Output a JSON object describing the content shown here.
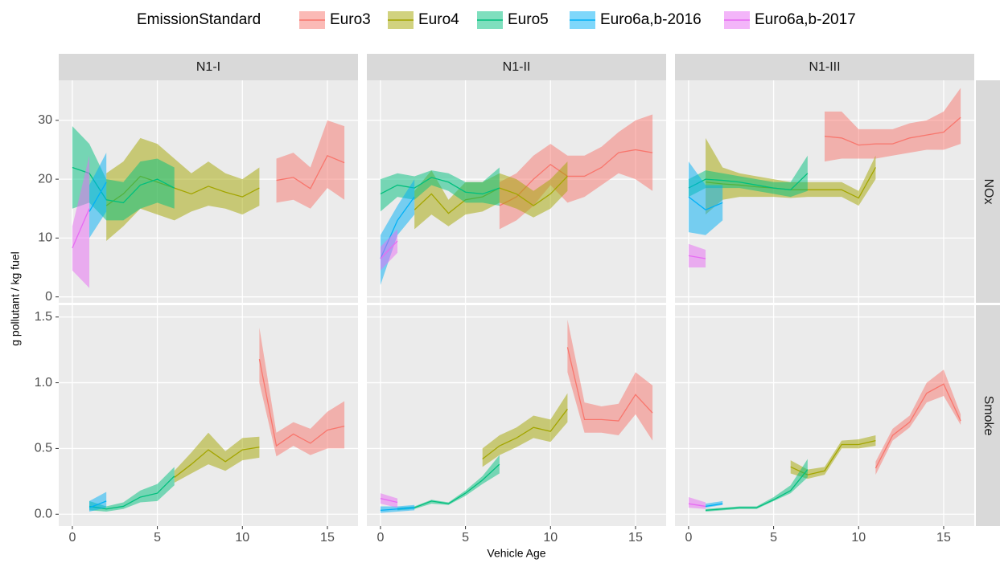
{
  "chart_data": {
    "type": "line",
    "legend_title": "EmissionStandard",
    "legend_position": "top",
    "x_label": "Vehicle Age",
    "y_label": "g pollutant / kg fuel",
    "series": [
      {
        "name": "Euro3",
        "color": "#F8766D"
      },
      {
        "name": "Euro4",
        "color": "#A3A500"
      },
      {
        "name": "Euro5",
        "color": "#00BF7D"
      },
      {
        "name": "Euro6a,b-2016",
        "color": "#00B0F6"
      },
      {
        "name": "Euro6a,b-2017",
        "color": "#E76BF3"
      }
    ],
    "cols": [
      "N1-I",
      "N1-II",
      "N1-III"
    ],
    "xlim": [
      -0.8,
      16.8
    ],
    "xticks": [
      0,
      5,
      10,
      15
    ],
    "rows": [
      {
        "label": "NOx",
        "ylim": [
          -1,
          36.8
        ],
        "yticks": [
          0,
          10,
          20,
          30
        ]
      },
      {
        "label": "Smoke",
        "ylim": [
          -0.09,
          1.59
        ],
        "yticks": [
          {
            "value": 0,
            "label": "0.0"
          },
          0.5,
          {
            "value": 1,
            "label": "1.0"
          },
          1.5
        ]
      }
    ],
    "grid": true,
    "panels": [
      {
        "series": [
          {
            "x": [
              12,
              13,
              14,
              15,
              16
            ],
            "values": [
              19.8,
              20.3,
              18.4,
              24,
              22.8
            ],
            "lower": [
              16,
              16.5,
              15,
              18.5,
              16.5
            ],
            "upper": [
              23.5,
              24.5,
              22,
              30,
              29
            ]
          },
          {
            "x": [
              2,
              3,
              4,
              5,
              6,
              7,
              8,
              9,
              10,
              11
            ],
            "values": [
              15.5,
              17.5,
              20.5,
              19.5,
              18.5,
              17.5,
              18.8,
              17.8,
              17,
              18.5
            ],
            "lower": [
              9.5,
              12,
              15,
              14,
              13,
              14.5,
              15.5,
              15,
              14,
              15.5
            ],
            "upper": [
              21,
              23,
              27,
              26,
              23.5,
              21,
              23,
              21,
              20,
              22
            ]
          },
          {
            "x": [
              0,
              1,
              2,
              3,
              4,
              5,
              6
            ],
            "values": [
              22,
              21,
              16.5,
              16,
              19,
              20,
              18.5
            ],
            "lower": [
              15,
              16,
              13,
              13,
              15,
              16,
              15
            ],
            "upper": [
              29,
              26,
              20,
              19.5,
              23,
              23.5,
              22
            ]
          },
          {
            "x": [
              1,
              2
            ],
            "values": [
              14.5,
              19.5
            ],
            "lower": [
              10,
              14.5
            ],
            "upper": [
              19,
              24.5
            ]
          },
          {
            "x": [
              0,
              1
            ],
            "values": [
              8.3,
              15
            ],
            "lower": [
              4.5,
              1.5
            ],
            "upper": [
              12,
              24
            ]
          }
        ]
      },
      {
        "series": [
          {
            "x": [
              7,
              8,
              9,
              10,
              11,
              12,
              13,
              14,
              15,
              16
            ],
            "values": [
              15.5,
              17,
              20,
              22.5,
              20.5,
              20.5,
              22,
              24.5,
              25,
              24.5
            ],
            "lower": [
              11.5,
              13,
              15.5,
              19,
              16,
              17,
              19,
              21,
              20,
              18
            ],
            "upper": [
              19.5,
              21,
              24,
              26,
              24,
              24,
              25.5,
              28,
              30,
              31
            ]
          },
          {
            "x": [
              2,
              3,
              4,
              5,
              6,
              7,
              8,
              9,
              10,
              11
            ],
            "values": [
              14.8,
              17.5,
              14.2,
              16.5,
              17,
              18.5,
              17.5,
              15.5,
              17.5,
              20.5
            ],
            "lower": [
              11.5,
              14,
              12,
              14,
              14.5,
              16,
              15,
              13.5,
              15,
              18
            ],
            "upper": [
              18,
              21.5,
              16.5,
              19.5,
              19.5,
              21,
              20,
              18,
              20,
              23
            ]
          },
          {
            "x": [
              0,
              1,
              2,
              3,
              4,
              5,
              6,
              7
            ],
            "values": [
              17.5,
              19,
              18.5,
              20.3,
              19.5,
              17.8,
              17.5,
              18.5
            ],
            "lower": [
              14.5,
              17,
              16.5,
              19,
              18,
              16,
              16,
              15.5
            ],
            "upper": [
              20,
              21,
              20.5,
              21.5,
              21,
              19.5,
              19.5,
              22
            ]
          },
          {
            "x": [
              0,
              1,
              2
            ],
            "values": [
              6.5,
              13,
              17
            ],
            "lower": [
              2,
              10.5,
              14
            ],
            "upper": [
              10.5,
              15.5,
              20
            ]
          },
          {
            "x": [
              0,
              1
            ],
            "values": [
              6.5,
              9.5
            ],
            "lower": [
              4.5,
              7.5
            ],
            "upper": [
              8.5,
              11.5
            ]
          }
        ]
      },
      {
        "series": [
          {
            "x": [
              8,
              9,
              10,
              11,
              12,
              13,
              14,
              15,
              16
            ],
            "values": [
              27.3,
              27,
              25.8,
              26,
              26,
              27,
              27.5,
              28,
              30.5
            ],
            "lower": [
              23,
              23.5,
              23.5,
              23.5,
              24,
              24.5,
              25,
              25,
              26
            ],
            "upper": [
              31.5,
              31.5,
              28.5,
              28.5,
              28.5,
              29.5,
              30,
              31.5,
              35.5
            ]
          },
          {
            "x": [
              1,
              2,
              3,
              4,
              5,
              6,
              7,
              8,
              9,
              10,
              11
            ],
            "values": [
              19.5,
              19.2,
              19,
              18.7,
              18.5,
              18.2,
              18.2,
              18.2,
              18.2,
              16.8,
              22
            ],
            "lower": [
              14,
              16.5,
              17,
              17,
              17,
              16.8,
              17,
              17,
              17,
              15.5,
              20
            ],
            "upper": [
              27,
              22,
              21,
              20.5,
              20,
              19.5,
              19.5,
              19.5,
              19.5,
              18,
              24
            ]
          },
          {
            "x": [
              0,
              1,
              2,
              3,
              4,
              5,
              6,
              7
            ],
            "values": [
              18.5,
              20,
              19.8,
              19.5,
              19,
              18.5,
              18.2,
              21
            ],
            "lower": [
              17,
              18.5,
              18.5,
              18.5,
              18,
              17.5,
              17,
              18
            ],
            "upper": [
              20,
              21.5,
              21,
              20.5,
              20,
              19.5,
              19.5,
              24
            ]
          },
          {
            "x": [
              0,
              1,
              2
            ],
            "values": [
              17,
              14.8,
              16
            ],
            "lower": [
              11,
              10.5,
              13
            ],
            "upper": [
              23,
              19,
              19
            ]
          },
          {
            "x": [
              0,
              1
            ],
            "values": [
              7,
              6.5
            ],
            "lower": [
              5,
              5
            ],
            "upper": [
              9,
              8
            ]
          }
        ]
      },
      {
        "series": [
          {
            "x": [
              11,
              12,
              13,
              14,
              15,
              16
            ],
            "values": [
              1.18,
              0.52,
              0.61,
              0.54,
              0.64,
              0.67
            ],
            "lower": [
              1.0,
              0.44,
              0.52,
              0.45,
              0.5,
              0.5
            ],
            "upper": [
              1.42,
              0.62,
              0.7,
              0.65,
              0.78,
              0.86
            ]
          },
          {
            "x": [
              6,
              7,
              8,
              9,
              10,
              11
            ],
            "values": [
              0.28,
              0.38,
              0.49,
              0.4,
              0.49,
              0.51
            ],
            "lower": [
              0.24,
              0.31,
              0.38,
              0.33,
              0.41,
              0.43
            ],
            "upper": [
              0.33,
              0.47,
              0.62,
              0.48,
              0.58,
              0.59
            ]
          },
          {
            "x": [
              1,
              2,
              3,
              4,
              5,
              6
            ],
            "values": [
              0.06,
              0.04,
              0.06,
              0.13,
              0.16,
              0.29
            ],
            "lower": [
              0.03,
              0.02,
              0.04,
              0.09,
              0.1,
              0.22
            ],
            "upper": [
              0.1,
              0.06,
              0.09,
              0.18,
              0.23,
              0.36
            ]
          },
          {
            "x": [
              1,
              2
            ],
            "values": [
              0.05,
              0.1
            ],
            "lower": [
              0.02,
              0.05
            ],
            "upper": [
              0.1,
              0.17
            ]
          },
          {
            "x": [],
            "values": [],
            "lower": [],
            "upper": []
          }
        ]
      },
      {
        "series": [
          {
            "x": [
              11,
              12,
              13,
              14,
              15,
              16
            ],
            "values": [
              1.27,
              0.72,
              0.72,
              0.71,
              0.91,
              0.77
            ],
            "lower": [
              1.08,
              0.62,
              0.62,
              0.6,
              0.76,
              0.56
            ],
            "upper": [
              1.48,
              0.85,
              0.82,
              0.84,
              1.08,
              0.98
            ]
          },
          {
            "x": [
              6,
              7,
              8,
              9,
              10,
              11
            ],
            "values": [
              0.42,
              0.52,
              0.58,
              0.66,
              0.63,
              0.8
            ],
            "lower": [
              0.36,
              0.45,
              0.51,
              0.58,
              0.55,
              0.7
            ],
            "upper": [
              0.5,
              0.6,
              0.66,
              0.75,
              0.72,
              0.92
            ]
          },
          {
            "x": [
              1,
              2,
              3,
              4,
              5,
              6,
              7
            ],
            "values": [
              0.04,
              0.05,
              0.1,
              0.08,
              0.16,
              0.26,
              0.38
            ],
            "lower": [
              0.03,
              0.04,
              0.08,
              0.07,
              0.14,
              0.23,
              0.31
            ],
            "upper": [
              0.05,
              0.06,
              0.11,
              0.09,
              0.18,
              0.29,
              0.45
            ]
          },
          {
            "x": [
              0,
              1,
              2
            ],
            "values": [
              0.03,
              0.04,
              0.05
            ],
            "lower": [
              0.01,
              0.02,
              0.03
            ],
            "upper": [
              0.06,
              0.06,
              0.07
            ]
          },
          {
            "x": [
              0,
              1
            ],
            "values": [
              0.12,
              0.09
            ],
            "lower": [
              0.08,
              0.05
            ],
            "upper": [
              0.16,
              0.12
            ]
          }
        ]
      },
      {
        "series": [
          {
            "x": [
              11,
              12,
              13,
              14,
              15,
              16
            ],
            "values": [
              0.35,
              0.6,
              0.7,
              0.92,
              0.99,
              0.71
            ],
            "lower": [
              0.3,
              0.56,
              0.66,
              0.85,
              0.9,
              0.68
            ],
            "upper": [
              0.4,
              0.65,
              0.75,
              1.0,
              1.1,
              0.76
            ]
          },
          {
            "x": [
              6,
              7,
              8,
              9,
              10,
              11
            ],
            "values": [
              0.36,
              0.3,
              0.33,
              0.53,
              0.53,
              0.56
            ],
            "lower": [
              0.31,
              0.27,
              0.3,
              0.5,
              0.5,
              0.52
            ],
            "upper": [
              0.41,
              0.34,
              0.36,
              0.56,
              0.57,
              0.6
            ]
          },
          {
            "x": [
              1,
              2,
              3,
              4,
              5,
              6,
              7
            ],
            "values": [
              0.03,
              0.04,
              0.05,
              0.05,
              0.11,
              0.18,
              0.34
            ],
            "lower": [
              0.02,
              0.03,
              0.04,
              0.04,
              0.1,
              0.16,
              0.28
            ],
            "upper": [
              0.04,
              0.05,
              0.06,
              0.06,
              0.13,
              0.22,
              0.42
            ]
          },
          {
            "x": [
              1,
              2
            ],
            "values": [
              0.06,
              0.08
            ],
            "lower": [
              0.05,
              0.07
            ],
            "upper": [
              0.08,
              0.1
            ]
          },
          {
            "x": [
              0,
              1
            ],
            "values": [
              0.08,
              0.06
            ],
            "lower": [
              0.05,
              0.04
            ],
            "upper": [
              0.13,
              0.09
            ]
          }
        ]
      }
    ]
  }
}
